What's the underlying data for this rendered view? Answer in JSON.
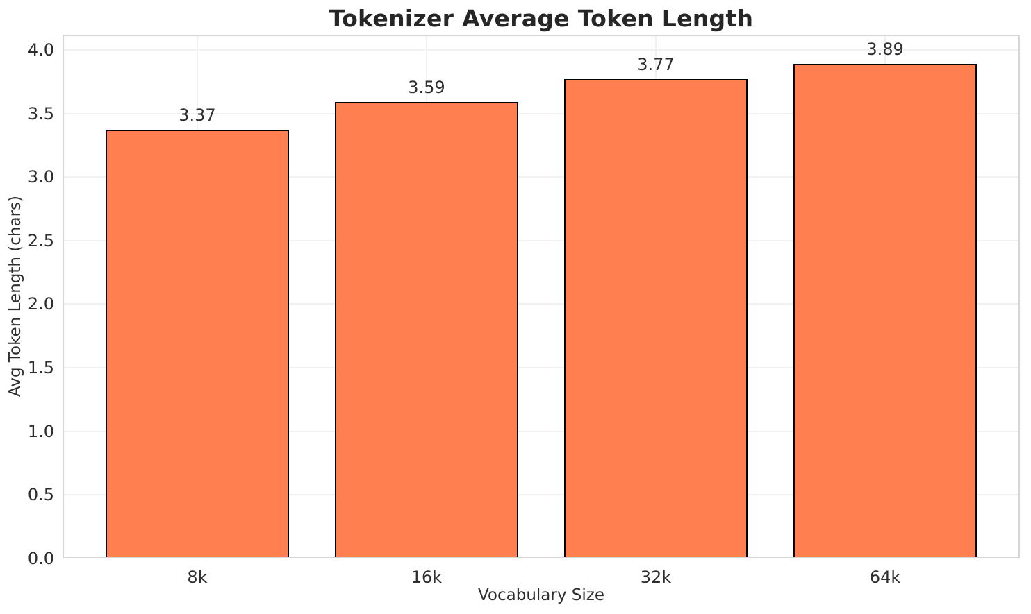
{
  "chart_data": {
    "type": "bar",
    "title": "Tokenizer Average Token Length",
    "xlabel": "Vocabulary Size",
    "ylabel": "Avg Token Length (chars)",
    "categories": [
      "8k",
      "16k",
      "32k",
      "64k"
    ],
    "values": [
      3.37,
      3.59,
      3.77,
      3.89
    ],
    "bar_labels": [
      "3.37",
      "3.59",
      "3.77",
      "3.89"
    ],
    "ytick_values": [
      0,
      0.5,
      1.0,
      1.5,
      2.0,
      2.5,
      3.0,
      3.5,
      4.0
    ],
    "ytick_labels": [
      "0.0",
      "0.5",
      "1.0",
      "1.5",
      "2.0",
      "2.5",
      "3.0",
      "3.5",
      "4.0"
    ],
    "ylim": [
      0,
      4.12
    ],
    "grid": true,
    "grid_axes": "both",
    "legend": false,
    "bar_width_frac": 0.8,
    "x_pad_frac": 0.021
  },
  "colors": {
    "bar_fill": "#ff7f50",
    "bar_edge": "#000000",
    "grid": "#f1f1f2",
    "spine": "#d6d6d6",
    "title_text": "#262626",
    "tick_text": "#2e2e2e",
    "background": "#ffffff"
  }
}
